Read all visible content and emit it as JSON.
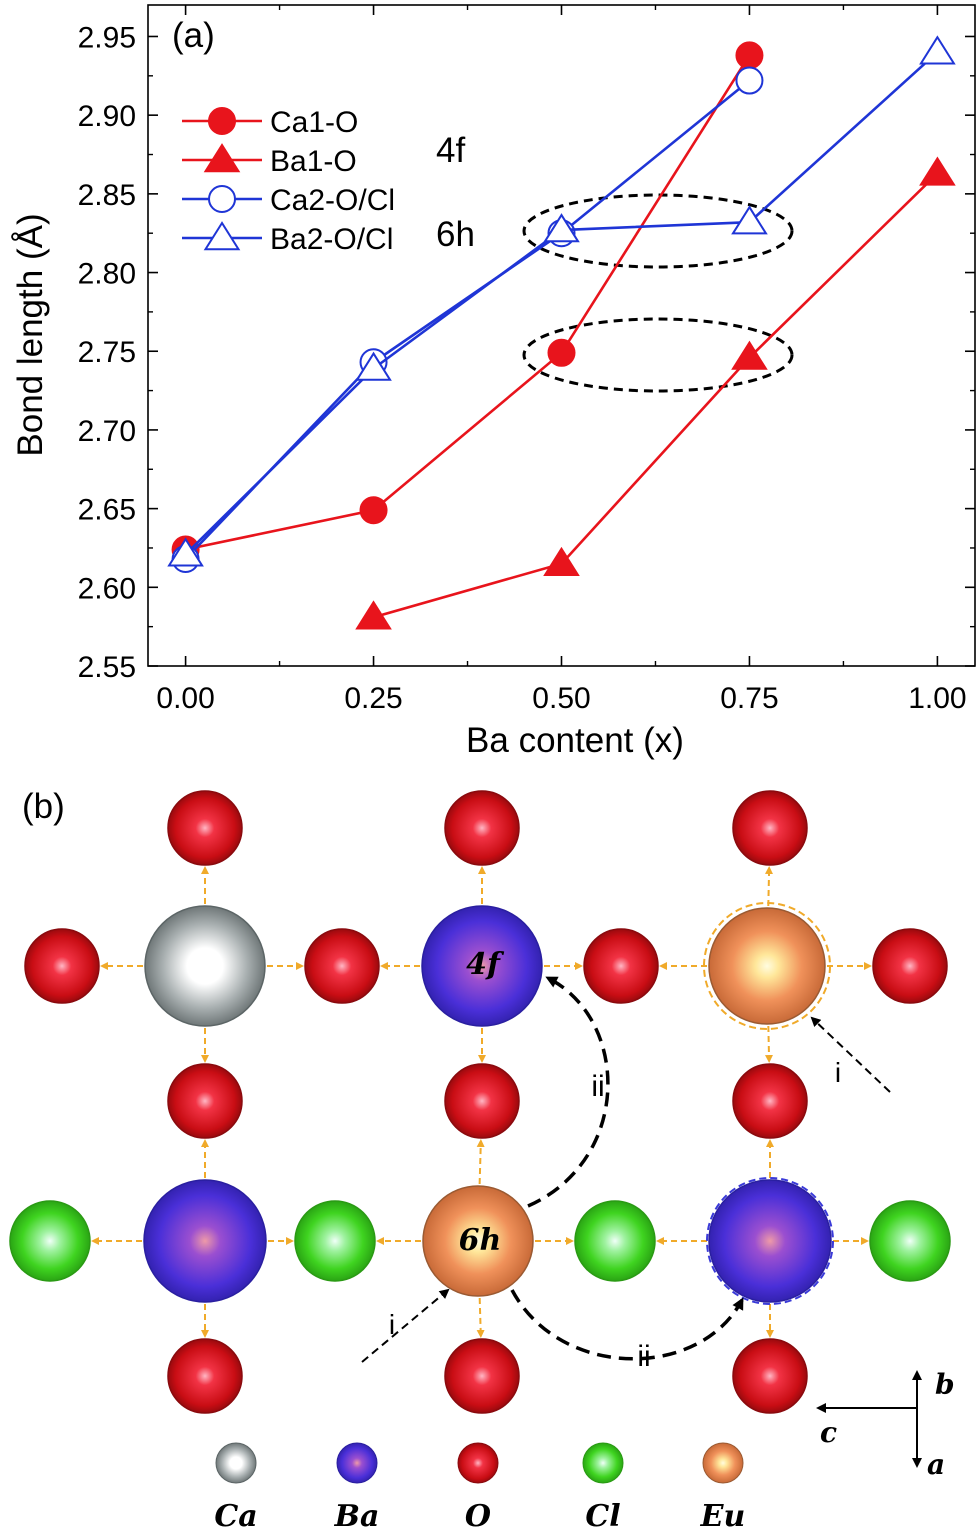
{
  "panel_a_label": "(a)",
  "panel_b_label": "(b)",
  "chart_data": {
    "type": "line",
    "xlabel": "Ba content (x)",
    "ylabel": "Bond length (Å)",
    "xlim": [
      -0.05,
      1.05
    ],
    "ylim": [
      2.55,
      2.97
    ],
    "xticks": [
      "0.00",
      "0.25",
      "0.50",
      "0.75",
      "1.00"
    ],
    "yticks": [
      "2.55",
      "2.60",
      "2.65",
      "2.70",
      "2.75",
      "2.80",
      "2.85",
      "2.90",
      "2.95"
    ],
    "site_labels": [
      "4f",
      "6h"
    ],
    "legend_position": "top-left",
    "series": [
      {
        "name": "Ca1-O",
        "color": "#e8141c",
        "marker": "circle-filled",
        "x": [
          0,
          0.25,
          0.5,
          0.75
        ],
        "y": [
          2.624,
          2.649,
          2.749,
          2.938
        ]
      },
      {
        "name": "Ba1-O",
        "color": "#e8141c",
        "marker": "triangle-filled",
        "x": [
          0.25,
          0.5,
          0.75,
          1.0
        ],
        "y": [
          2.581,
          2.615,
          2.746,
          2.863
        ]
      },
      {
        "name": "Ca2-O/Cl",
        "color": "#1f35d6",
        "marker": "circle-open",
        "x": [
          0,
          0.25,
          0.5,
          0.75
        ],
        "y": [
          2.618,
          2.743,
          2.825,
          2.922
        ]
      },
      {
        "name": "Ba2-O/Cl",
        "color": "#1f35d6",
        "marker": "triangle-open",
        "x": [
          0,
          0.25,
          0.5,
          0.75,
          1.0
        ],
        "y": [
          2.621,
          2.739,
          2.827,
          2.832,
          2.94
        ]
      }
    ]
  },
  "structure": {
    "labels": {
      "site_4f": "4f",
      "site_6h": "6h",
      "path_i": "i",
      "path_ii": "ii",
      "axis_a": "a",
      "axis_b": "b",
      "axis_c": "c"
    },
    "colors": {
      "Ca": "#9aa3a4",
      "Ba": "#4a2fd8",
      "O": "#d8121a",
      "Cl": "#38d818",
      "Eu": "#e98a52",
      "bond": "#f0aa2a"
    },
    "legend": [
      {
        "element": "Ca",
        "label": "Ca"
      },
      {
        "element": "Ba",
        "label": "Ba"
      },
      {
        "element": "O",
        "label": "O"
      },
      {
        "element": "Cl",
        "label": "Cl"
      },
      {
        "element": "Eu",
        "label": "Eu"
      }
    ]
  }
}
